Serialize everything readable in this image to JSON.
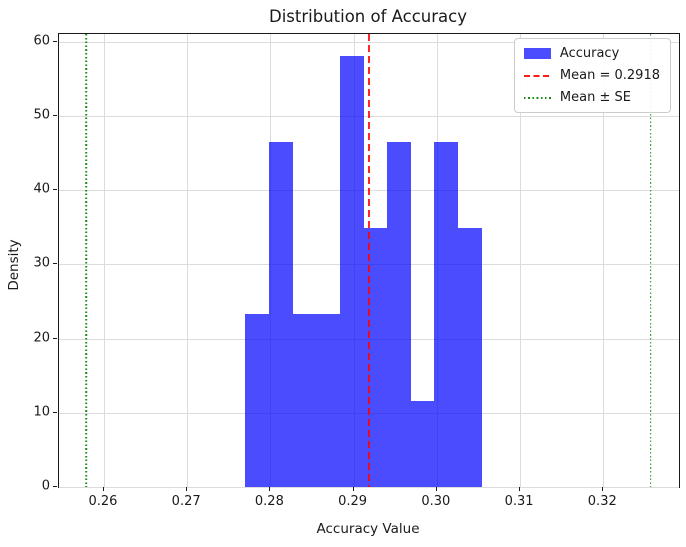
{
  "chart_data": {
    "type": "bar",
    "subtype": "histogram-density",
    "title": "Distribution of Accuracy",
    "xlabel": "Accuracy Value",
    "ylabel": "Density",
    "xlim": [
      0.2546,
      0.3291
    ],
    "ylim": [
      0,
      61.05
    ],
    "x_ticks": [
      0.26,
      0.27,
      0.28,
      0.29,
      0.3,
      0.31,
      0.32
    ],
    "x_tick_labels": [
      "0.26",
      "0.27",
      "0.28",
      "0.29",
      "0.30",
      "0.31",
      "0.32"
    ],
    "y_ticks": [
      0,
      10,
      20,
      30,
      40,
      50,
      60
    ],
    "y_tick_labels": [
      "0",
      "10",
      "20",
      "30",
      "40",
      "50",
      "60"
    ],
    "grid": true,
    "series": [
      {
        "name": "Accuracy",
        "type": "histogram",
        "color": "rgba(0,0,255,0.7)",
        "bin_edges": [
          0.277,
          0.27984,
          0.28268,
          0.28552,
          0.28836,
          0.2912,
          0.29404,
          0.29688,
          0.29972,
          0.30256,
          0.3054
        ],
        "densities": [
          23.26,
          46.51,
          23.26,
          23.26,
          58.14,
          34.88,
          46.51,
          11.63,
          46.51,
          34.88
        ],
        "counts": [
          2,
          4,
          2,
          2,
          5,
          3,
          4,
          1,
          4,
          3
        ]
      },
      {
        "name": "Mean = 0.2918",
        "type": "vline",
        "x": [
          0.2918
        ],
        "color": "rgba(255,0,0,0.85)",
        "linestyle": "dashed"
      },
      {
        "name": "Mean ± SE",
        "type": "vline",
        "x": [
          0.2579,
          0.3257
        ],
        "color": "rgba(0,128,0,0.9)",
        "linestyle": "dotted"
      }
    ],
    "legend": {
      "position": "upper right",
      "items": [
        {
          "label": "Accuracy",
          "swatch": "patch",
          "color": "rgba(0,0,255,0.7)"
        },
        {
          "label": "Mean = 0.2918",
          "swatch": "dashed-line",
          "color": "rgba(255,0,0,0.85)"
        },
        {
          "label": "Mean ± SE",
          "swatch": "dotted-line",
          "color": "rgba(0,128,0,0.9)"
        }
      ]
    },
    "annotations": {
      "mean": 0.2918
    }
  }
}
